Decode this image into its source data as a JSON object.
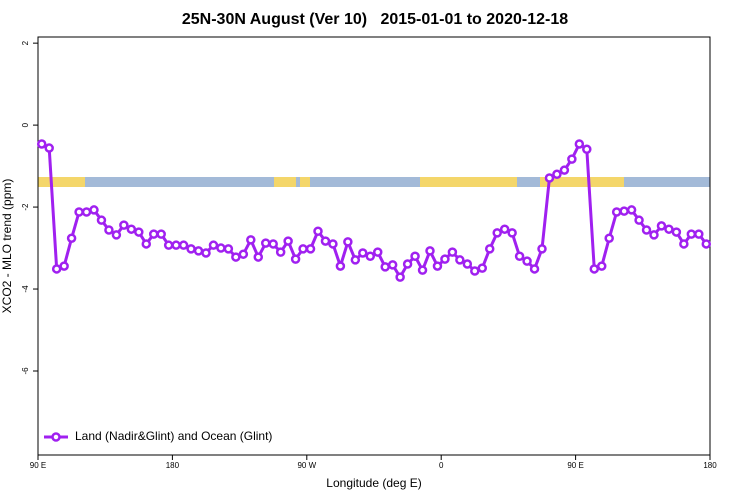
{
  "chart_data": {
    "type": "line",
    "title": "25N-30N August (Ver 10)   2015-01-01 to 2020-12-18",
    "x_label": "Longitude (deg E)",
    "y_label": "XCO2 - MLO trend (ppm)",
    "x": [
      92.5,
      97.5,
      102.5,
      107.5,
      112.5,
      117.5,
      122.5,
      127.5,
      132.5,
      137.5,
      142.5,
      147.5,
      152.5,
      157.5,
      162.5,
      167.5,
      172.5,
      177.5,
      182.5,
      187.5,
      192.5,
      197.5,
      202.5,
      207.5,
      212.5,
      217.5,
      222.5,
      227.5,
      232.5,
      237.5,
      242.5,
      247.5,
      252.5,
      257.5,
      262.5,
      267.5,
      272.5,
      277.5,
      282.5,
      287.5,
      292.5,
      297.5,
      302.5,
      307.5,
      312.5,
      317.5,
      322.5,
      327.5,
      332.5,
      337.5,
      342.5,
      347.5,
      352.5,
      357.5,
      362.5,
      367.5,
      372.5,
      377.5,
      382.5,
      387.5,
      392.5,
      397.5,
      402.5,
      407.5,
      412.5,
      417.5,
      422.5,
      427.5,
      432.5,
      437.5,
      442.5,
      447.5,
      452.5,
      457.5,
      462.5,
      467.5,
      472.5,
      477.5,
      482.5,
      487.5,
      492.5,
      497.5,
      502.5,
      507.5,
      512.5,
      517.5,
      522.5,
      527.5,
      532.5,
      537.5
    ],
    "series": [
      {
        "name": "Land (Nadir&Glint) and Ocean (Glint)",
        "color": "#a020f0",
        "values": [
          -0.46,
          -0.56,
          -3.51,
          -3.44,
          -2.76,
          -2.12,
          -2.12,
          -2.07,
          -2.32,
          -2.56,
          -2.68,
          -2.44,
          -2.54,
          -2.61,
          -2.9,
          -2.66,
          -2.66,
          -2.93,
          -2.93,
          -2.93,
          -3.02,
          -3.07,
          -3.12,
          -2.93,
          -3.0,
          -3.02,
          -3.22,
          -3.15,
          -2.8,
          -3.22,
          -2.88,
          -2.9,
          -3.1,
          -2.83,
          -3.27,
          -3.02,
          -3.02,
          -2.59,
          -2.83,
          -2.9,
          -3.44,
          -2.85,
          -3.29,
          -3.12,
          -3.2,
          -3.1,
          -3.46,
          -3.41,
          -3.71,
          -3.39,
          -3.2,
          -3.54,
          -3.07,
          -3.44,
          -3.27,
          -3.1,
          -3.29,
          -3.39,
          -3.56,
          -3.49,
          -3.02,
          -2.63,
          -2.54,
          -2.63,
          -3.2,
          -3.32,
          -3.51,
          -3.02,
          -1.29,
          -1.2,
          -1.1,
          -0.83,
          -0.46,
          -0.59,
          -3.51,
          -3.44,
          -2.76,
          -2.12,
          -2.1,
          -2.07,
          -2.32,
          -2.56,
          -2.68,
          -2.46,
          -2.54,
          -2.61,
          -2.9,
          -2.66,
          -2.66,
          -2.9
        ]
      }
    ],
    "xlim": [
      90,
      540
    ],
    "xticks": [
      {
        "value": 90,
        "label": "90 E"
      },
      180,
      {
        "value": 270,
        "label": "90 W"
      },
      {
        "value": 360,
        "label": "0"
      },
      {
        "value": 450,
        "label": "90 E"
      },
      {
        "value": 540,
        "label": "180"
      }
    ],
    "ylim": [
      -8.05,
      2.15
    ],
    "yticks": [
      2,
      0,
      -2,
      -4,
      -6
    ],
    "legend": "bottom-left"
  }
}
